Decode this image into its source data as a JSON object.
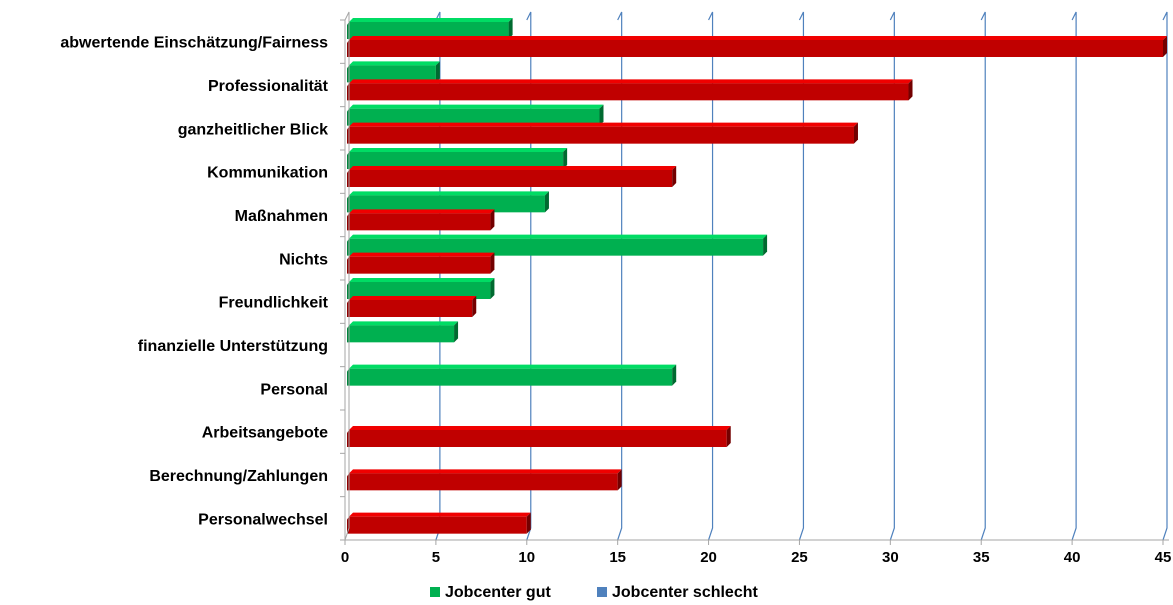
{
  "chart_data": {
    "type": "bar",
    "orientation": "horizontal",
    "style": "3d-clustered",
    "categories": [
      "abwertende Einschätzung/Fairness",
      "Professionalität",
      "ganzheitlicher Blick",
      "Kommunikation",
      "Maßnahmen",
      "Nichts",
      "Freundlichkeit",
      "finanzielle Unterstützung",
      "Personal",
      "Arbeitsangebote",
      "Berechnung/Zahlungen",
      "Personalwechsel"
    ],
    "series": [
      {
        "name": "Jobcenter gut",
        "color": "#00b050",
        "values": [
          9,
          5,
          14,
          12,
          11,
          23,
          8,
          6,
          18,
          0,
          0,
          0
        ]
      },
      {
        "name": "Jobcenter schlecht",
        "color": "#c00000",
        "legend_color": "#4f81bd",
        "values": [
          45,
          31,
          28,
          18,
          8,
          8,
          7,
          0,
          0,
          21,
          15,
          10
        ]
      }
    ],
    "xlim": [
      0,
      45
    ],
    "xticks": [
      0,
      5,
      10,
      15,
      20,
      25,
      30,
      35,
      40,
      45
    ],
    "grid": true,
    "gridline_color": "#4f81bd",
    "legend_position": "bottom",
    "title": "",
    "xlabel": "",
    "ylabel": ""
  }
}
